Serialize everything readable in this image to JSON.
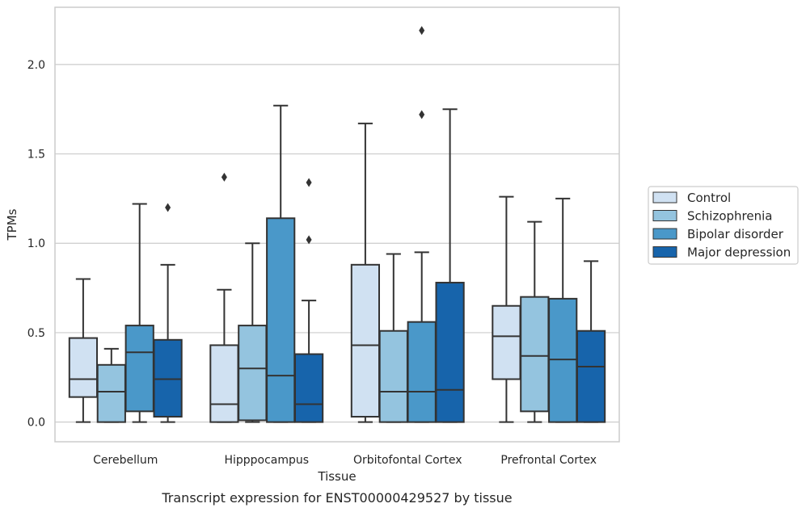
{
  "chart_data": {
    "type": "boxplot",
    "title": "",
    "caption": "Transcript expression for ENST00000429527 by tissue",
    "xlabel": "Tissue",
    "ylabel": "TPMs",
    "ylim": [
      -0.11,
      2.32
    ],
    "yticks": [
      0.0,
      0.5,
      1.0,
      1.5,
      2.0
    ],
    "ytick_labels": [
      "0.0",
      "0.5",
      "1.0",
      "1.5",
      "2.0"
    ],
    "grid": "horizontal",
    "legend_position": "right",
    "categories": [
      "Cerebellum",
      "Hipppocampus",
      "Orbitofontal Cortex",
      "Prefrontal Cortex"
    ],
    "series": [
      {
        "name": "Control",
        "color": "#d0e1f2",
        "boxes": [
          {
            "whislo": 0.0,
            "q1": 0.14,
            "med": 0.24,
            "q3": 0.47,
            "whishi": 0.8,
            "fliers": []
          },
          {
            "whislo": 0.0,
            "q1": 0.0,
            "med": 0.1,
            "q3": 0.43,
            "whishi": 0.74,
            "fliers": [
              1.37
            ]
          },
          {
            "whislo": 0.0,
            "q1": 0.03,
            "med": 0.43,
            "q3": 0.88,
            "whishi": 1.67,
            "fliers": []
          },
          {
            "whislo": 0.0,
            "q1": 0.24,
            "med": 0.48,
            "q3": 0.65,
            "whishi": 1.26,
            "fliers": []
          }
        ]
      },
      {
        "name": "Schizophrenia",
        "color": "#94c4df",
        "boxes": [
          {
            "whislo": 0.0,
            "q1": 0.0,
            "med": 0.17,
            "q3": 0.32,
            "whishi": 0.41,
            "fliers": []
          },
          {
            "whislo": 0.0,
            "q1": 0.01,
            "med": 0.3,
            "q3": 0.54,
            "whishi": 1.0,
            "fliers": []
          },
          {
            "whislo": 0.0,
            "q1": 0.0,
            "med": 0.17,
            "q3": 0.51,
            "whishi": 0.94,
            "fliers": []
          },
          {
            "whislo": 0.0,
            "q1": 0.06,
            "med": 0.37,
            "q3": 0.7,
            "whishi": 1.12,
            "fliers": []
          }
        ]
      },
      {
        "name": "Bipolar disorder",
        "color": "#4a98c9",
        "boxes": [
          {
            "whislo": 0.0,
            "q1": 0.06,
            "med": 0.39,
            "q3": 0.54,
            "whishi": 1.22,
            "fliers": []
          },
          {
            "whislo": 0.0,
            "q1": 0.0,
            "med": 0.26,
            "q3": 1.14,
            "whishi": 1.77,
            "fliers": []
          },
          {
            "whislo": 0.0,
            "q1": 0.0,
            "med": 0.17,
            "q3": 0.56,
            "whishi": 0.95,
            "fliers": [
              1.72,
              2.19
            ]
          },
          {
            "whislo": 0.0,
            "q1": 0.0,
            "med": 0.35,
            "q3": 0.69,
            "whishi": 1.25,
            "fliers": []
          }
        ]
      },
      {
        "name": "Major depression",
        "color": "#1764ab",
        "boxes": [
          {
            "whislo": 0.0,
            "q1": 0.03,
            "med": 0.24,
            "q3": 0.46,
            "whishi": 0.88,
            "fliers": [
              1.2
            ]
          },
          {
            "whislo": 0.0,
            "q1": 0.0,
            "med": 0.1,
            "q3": 0.38,
            "whishi": 0.68,
            "fliers": [
              1.02,
              1.34
            ]
          },
          {
            "whislo": 0.0,
            "q1": 0.0,
            "med": 0.18,
            "q3": 0.78,
            "whishi": 1.75,
            "fliers": []
          },
          {
            "whislo": 0.0,
            "q1": 0.0,
            "med": 0.31,
            "q3": 0.51,
            "whishi": 0.9,
            "fliers": []
          }
        ]
      }
    ],
    "colors": {
      "line": "#333333",
      "grid": "#cccccc",
      "frame": "#cccccc"
    }
  }
}
